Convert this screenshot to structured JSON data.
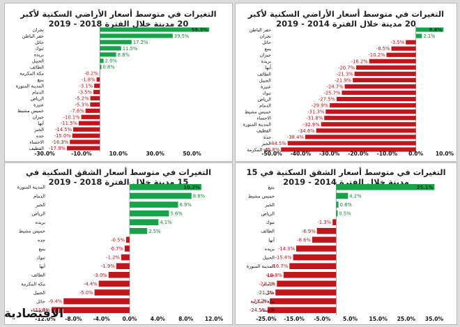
{
  "logo_text": "الاقتصادية",
  "colors": {
    "positive": "#16a34a",
    "negative": "#c0161c",
    "pos_label": "#118a35",
    "neg_label": "#c0161c"
  },
  "panels": [
    {
      "title": "التغيرات في متوسط أسعار الأراضي السكنية لأكبر 20 مدينة خلال الفترة 2014 - 2019",
      "chart_data": {
        "type": "bar",
        "orientation": "horizontal",
        "categories": [
          "حفر الباطن",
          "نجران",
          "حائل",
          "ينبع",
          "جيزان",
          "بريدة",
          "أبها",
          "الطائف",
          "الجبيل",
          "عنيزة",
          "تبوك",
          "الرياض",
          "الدمام",
          "خميس مشيط",
          "الاحساء",
          "المدينة المنورة",
          "القطيف",
          "جدة",
          "الخبر",
          "مكة المكرمة"
        ],
        "values": [
          9.6,
          2.1,
          -3.5,
          -8.5,
          -10.2,
          -16.2,
          -20.7,
          -21.3,
          -21.9,
          -24.7,
          -25.7,
          -27.5,
          -29.9,
          -31.3,
          -31.8,
          -32.9,
          -34.6,
          -38.4,
          -44.5,
          -46.8
        ],
        "value_labels": [
          "9.6%",
          "2.1%",
          "-3.5%",
          "-8.5%",
          "-10.2%",
          "-16.2%",
          "-20.7%",
          "-21.3%",
          "-21.9%",
          "-24.7%",
          "-25.7%",
          "-27.5%",
          "-29.9%",
          "-31.3%",
          "-31.8%",
          "-32.9%",
          "-34.6%",
          "-38.4%",
          "-44.5%",
          "-46.8%"
        ],
        "xlim": [
          -50,
          10
        ],
        "xticks": [
          -50,
          -40,
          -30,
          -20,
          -10,
          0,
          10
        ],
        "xtick_labels": [
          "-50.0%",
          "-40.0%",
          "-30.0%",
          "-20.0%",
          "-10.0%",
          "0.0%",
          "10.0%"
        ]
      }
    },
    {
      "title": "التغيرات في متوسط أسعار الأراضي السكنية لأكبر 20 مدينة خلال الفترة 2018 - 2019",
      "chart_data": {
        "type": "bar",
        "orientation": "horizontal",
        "categories": [
          "نجران",
          "حفر الباطن",
          "حائل",
          "تبوك",
          "بريده",
          "الجبيل",
          "الطائف",
          "مكة المكرمة",
          "ينبع",
          "المدينة المنورة",
          "الدمام",
          "الرياض",
          "عنيزة",
          "خميس مشيط",
          "جيزان",
          "أبها",
          "الخبر",
          "جده",
          "الاحساء",
          "القطيف"
        ],
        "values": [
          59.3,
          39.5,
          17.2,
          11.5,
          8.8,
          2.0,
          0.8,
          -0.2,
          -1.8,
          -3.1,
          -3.5,
          -5.2,
          -5.3,
          -7.8,
          -10.1,
          -11.5,
          -14.5,
          -15.0,
          -16.3,
          -17.9
        ],
        "value_labels": [
          "59.3%",
          "39.5%",
          "17.2%",
          "11.5%",
          "8.8%",
          "2.0%",
          "0.8%",
          "-0.2%",
          "-1.8%",
          "-3.1%",
          "-3.5%",
          "-5.2%",
          "-5.3%",
          "-7.8%",
          "-10.1%",
          "-11.5%",
          "-14.5%",
          "-15.0%",
          "-16.3%",
          "-17.9%"
        ],
        "xlim": [
          -30,
          60
        ],
        "xticks": [
          -30,
          -10,
          10,
          30,
          50
        ],
        "xtick_labels": [
          "-30.0%",
          "-10.0%",
          "10.0%",
          "30.0%",
          "50.0%"
        ]
      }
    },
    {
      "title": "التغيرات في متوسط أسعار الشقق السكنية في 15 مدينة خلال الفترة 2014 - 2019",
      "chart_data": {
        "type": "bar",
        "orientation": "horizontal",
        "categories": [
          "ينبع",
          "خميس مشيط",
          "الخبر",
          "الرياض",
          "تبوك",
          "الطائف",
          "أبها",
          "بريده",
          "الجبيل",
          "المدينة المنورة",
          "جده",
          "الدمام",
          "حائل",
          "مكة المكرمة",
          "الاحساء"
        ],
        "values": [
          35.1,
          4.2,
          0.8,
          0.5,
          -1.3,
          -6.9,
          -8.6,
          -14.3,
          -15.4,
          -16.7,
          -18.8,
          -21.2,
          -21.7,
          -23.7,
          -24.5
        ],
        "value_labels": [
          "35.1%",
          "4.2%",
          "0.8%",
          "0.5%",
          "-1.3%",
          "-6.9%",
          "-8.6%",
          "-14.3%",
          "-15.4%",
          "-16.7%",
          "-18.8%",
          "-21.2%",
          "-21.7%",
          "-23.7%",
          "-24.5%"
        ],
        "xlim": [
          -25,
          35
        ],
        "xticks": [
          -25,
          -15,
          -5,
          5,
          15,
          25,
          35
        ],
        "xtick_labels": [
          "-25.0%",
          "-15.0%",
          "-5.0%",
          "5.0%",
          "15.0%",
          "25.0%",
          "35.0%"
        ]
      }
    },
    {
      "title": "التغيرات في متوسط أسعار الشقق السكنية في 15 مدينة خلال الفترة 2018 - 2019",
      "chart_data": {
        "type": "bar",
        "orientation": "horizontal",
        "categories": [
          "المدينة المنورة",
          "الدمام",
          "الخبر",
          "الرياض",
          "بريده",
          "خميس مشيط",
          "جده",
          "ينبع",
          "تبوك",
          "أبها",
          "الطائف",
          "مكة المكرمة",
          "الجبيل",
          "حائل",
          "الاحساء"
        ],
        "values": [
          10.2,
          8.8,
          6.9,
          5.6,
          4.1,
          2.5,
          -0.5,
          -0.7,
          -1.2,
          -1.9,
          -3.0,
          -4.4,
          -5.0,
          -9.4,
          -11.1
        ],
        "value_labels": [
          "10.2%",
          "8.8%",
          "6.9%",
          "5.6%",
          "4.1%",
          "2.5%",
          "-0.5%",
          "-0.7%",
          "-1.2%",
          "-1.9%",
          "-3.0%",
          "-4.4%",
          "-5.0%",
          "-9.4%",
          "-11.1%"
        ],
        "xlim": [
          -12,
          12
        ],
        "xticks": [
          -12,
          -8,
          -4,
          0,
          4,
          8,
          12
        ],
        "xtick_labels": [
          "-12.0%",
          "-8.0%",
          "-4.0%",
          "0.0%",
          "4.0%",
          "8.0%",
          "12.0%"
        ]
      }
    }
  ]
}
